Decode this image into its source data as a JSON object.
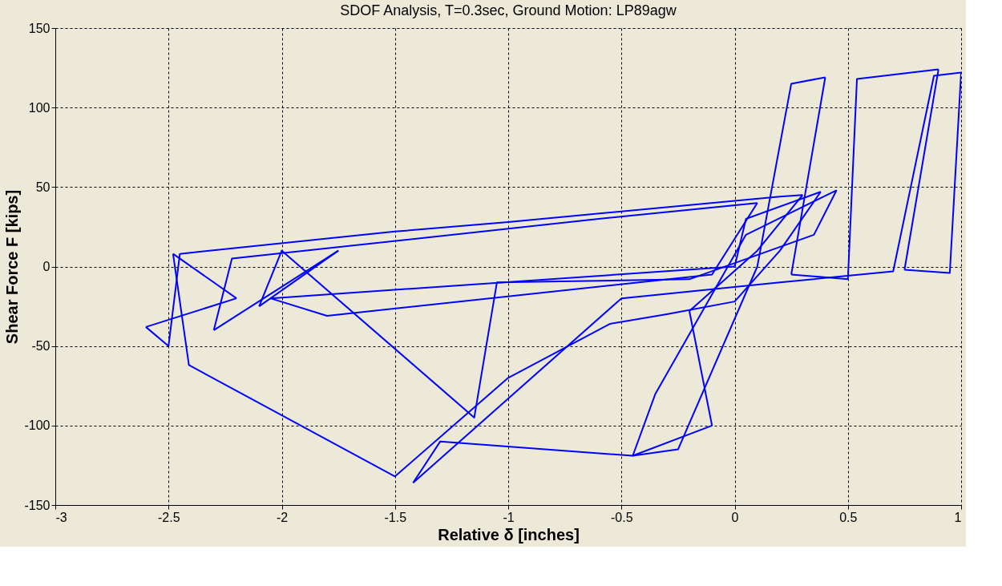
{
  "chart_data": {
    "type": "line",
    "title": "SDOF Analysis, T=0.3sec, Ground Motion: LP89agw",
    "xlabel": "Relative   δ [inches]",
    "ylabel": "Shear Force F [kips]",
    "series": [
      {
        "color": "#0000ff",
        "x": [
          0,
          0.05,
          0.38
        ],
        "values": [
          0,
          30,
          47
        ]
      },
      {
        "color": "#0000ff",
        "x": [
          0.38,
          0.2,
          0.0,
          -0.3,
          -0.55,
          -1.0,
          -1.5,
          -2.41,
          -2.48
        ],
        "values": [
          47,
          10,
          -22,
          -30,
          -36,
          -70,
          -132,
          -62,
          8
        ]
      },
      {
        "color": "#0000ff",
        "x": [
          -2.48,
          -2.2
        ],
        "values": [
          8,
          -20
        ]
      },
      {
        "color": "#0000ff",
        "x": [
          -2.2,
          -2.6
        ],
        "values": [
          -20,
          -38
        ]
      },
      {
        "color": "#0000ff",
        "x": [
          -2.6,
          -2.5,
          -2.45,
          -1.5,
          -1.0,
          0.2,
          0.3
        ],
        "values": [
          -38,
          -50,
          8,
          22,
          28,
          44,
          45
        ]
      },
      {
        "color": "#0000ff",
        "x": [
          0.3,
          0.1,
          -0.2
        ],
        "values": [
          45,
          10,
          -28
        ]
      },
      {
        "color": "#0000ff",
        "x": [
          -0.2,
          -0.1
        ],
        "values": [
          -28,
          -100
        ]
      },
      {
        "color": "#0000ff",
        "x": [
          -0.1,
          -0.45
        ],
        "values": [
          -100,
          -119
        ]
      },
      {
        "color": "#0000ff",
        "x": [
          -0.45,
          -0.25,
          0.1,
          0.25,
          0.4
        ],
        "values": [
          -119,
          -115,
          0,
          115,
          119
        ]
      },
      {
        "color": "#0000ff",
        "x": [
          0.4,
          0.25
        ],
        "values": [
          119,
          -5
        ]
      },
      {
        "color": "#0000ff",
        "x": [
          0.25,
          0.5,
          0.54,
          0.9
        ],
        "values": [
          -5,
          -8,
          118,
          124
        ]
      },
      {
        "color": "#0000ff",
        "x": [
          0.9,
          0.75
        ],
        "values": [
          124,
          -2
        ]
      },
      {
        "color": "#0000ff",
        "x": [
          0.75,
          0.95,
          1.0
        ],
        "values": [
          -2,
          -4,
          122
        ]
      },
      {
        "color": "#0000ff",
        "x": [
          1.0,
          0.88,
          0.7,
          0.2,
          -0.5,
          -1.42
        ],
        "values": [
          122,
          120,
          -3,
          -10,
          -20,
          -136
        ]
      },
      {
        "color": "#0000ff",
        "x": [
          -1.42,
          -1.3,
          -0.45,
          -0.35,
          0.05,
          0.45
        ],
        "values": [
          -136,
          -110,
          -119,
          -80,
          20,
          48
        ]
      },
      {
        "color": "#0000ff",
        "x": [
          0.45,
          0.35,
          -0.2,
          -1.05,
          -1.15,
          -2.0,
          -2.1
        ],
        "values": [
          48,
          20,
          -8,
          -10,
          -95,
          10,
          -25
        ]
      },
      {
        "color": "#0000ff",
        "x": [
          -2.1,
          -1.75
        ],
        "values": [
          -25,
          10
        ]
      },
      {
        "color": "#0000ff",
        "x": [
          -1.75,
          -2.3
        ],
        "values": [
          10,
          -40
        ]
      },
      {
        "color": "#0000ff",
        "x": [
          -2.3,
          -2.22,
          -0.6,
          0.1
        ],
        "values": [
          -40,
          5,
          30,
          40
        ]
      },
      {
        "color": "#0000ff",
        "x": [
          0.1,
          -0.1,
          -1.8,
          -2.05
        ],
        "values": [
          40,
          -5,
          -31,
          -20
        ]
      },
      {
        "color": "#0000ff",
        "x": [
          -2.05,
          0.0
        ],
        "values": [
          -20,
          0
        ]
      }
    ],
    "xlim": [
      -3,
      1
    ],
    "ylim": [
      -150,
      150
    ],
    "xticks": [
      -3,
      -2.5,
      -2,
      -1.5,
      -1,
      -0.5,
      0,
      0.5,
      1
    ],
    "yticks": [
      -150,
      -100,
      -50,
      0,
      50,
      100,
      150
    ],
    "grid": true,
    "marker": "none",
    "line_style": "solid"
  }
}
